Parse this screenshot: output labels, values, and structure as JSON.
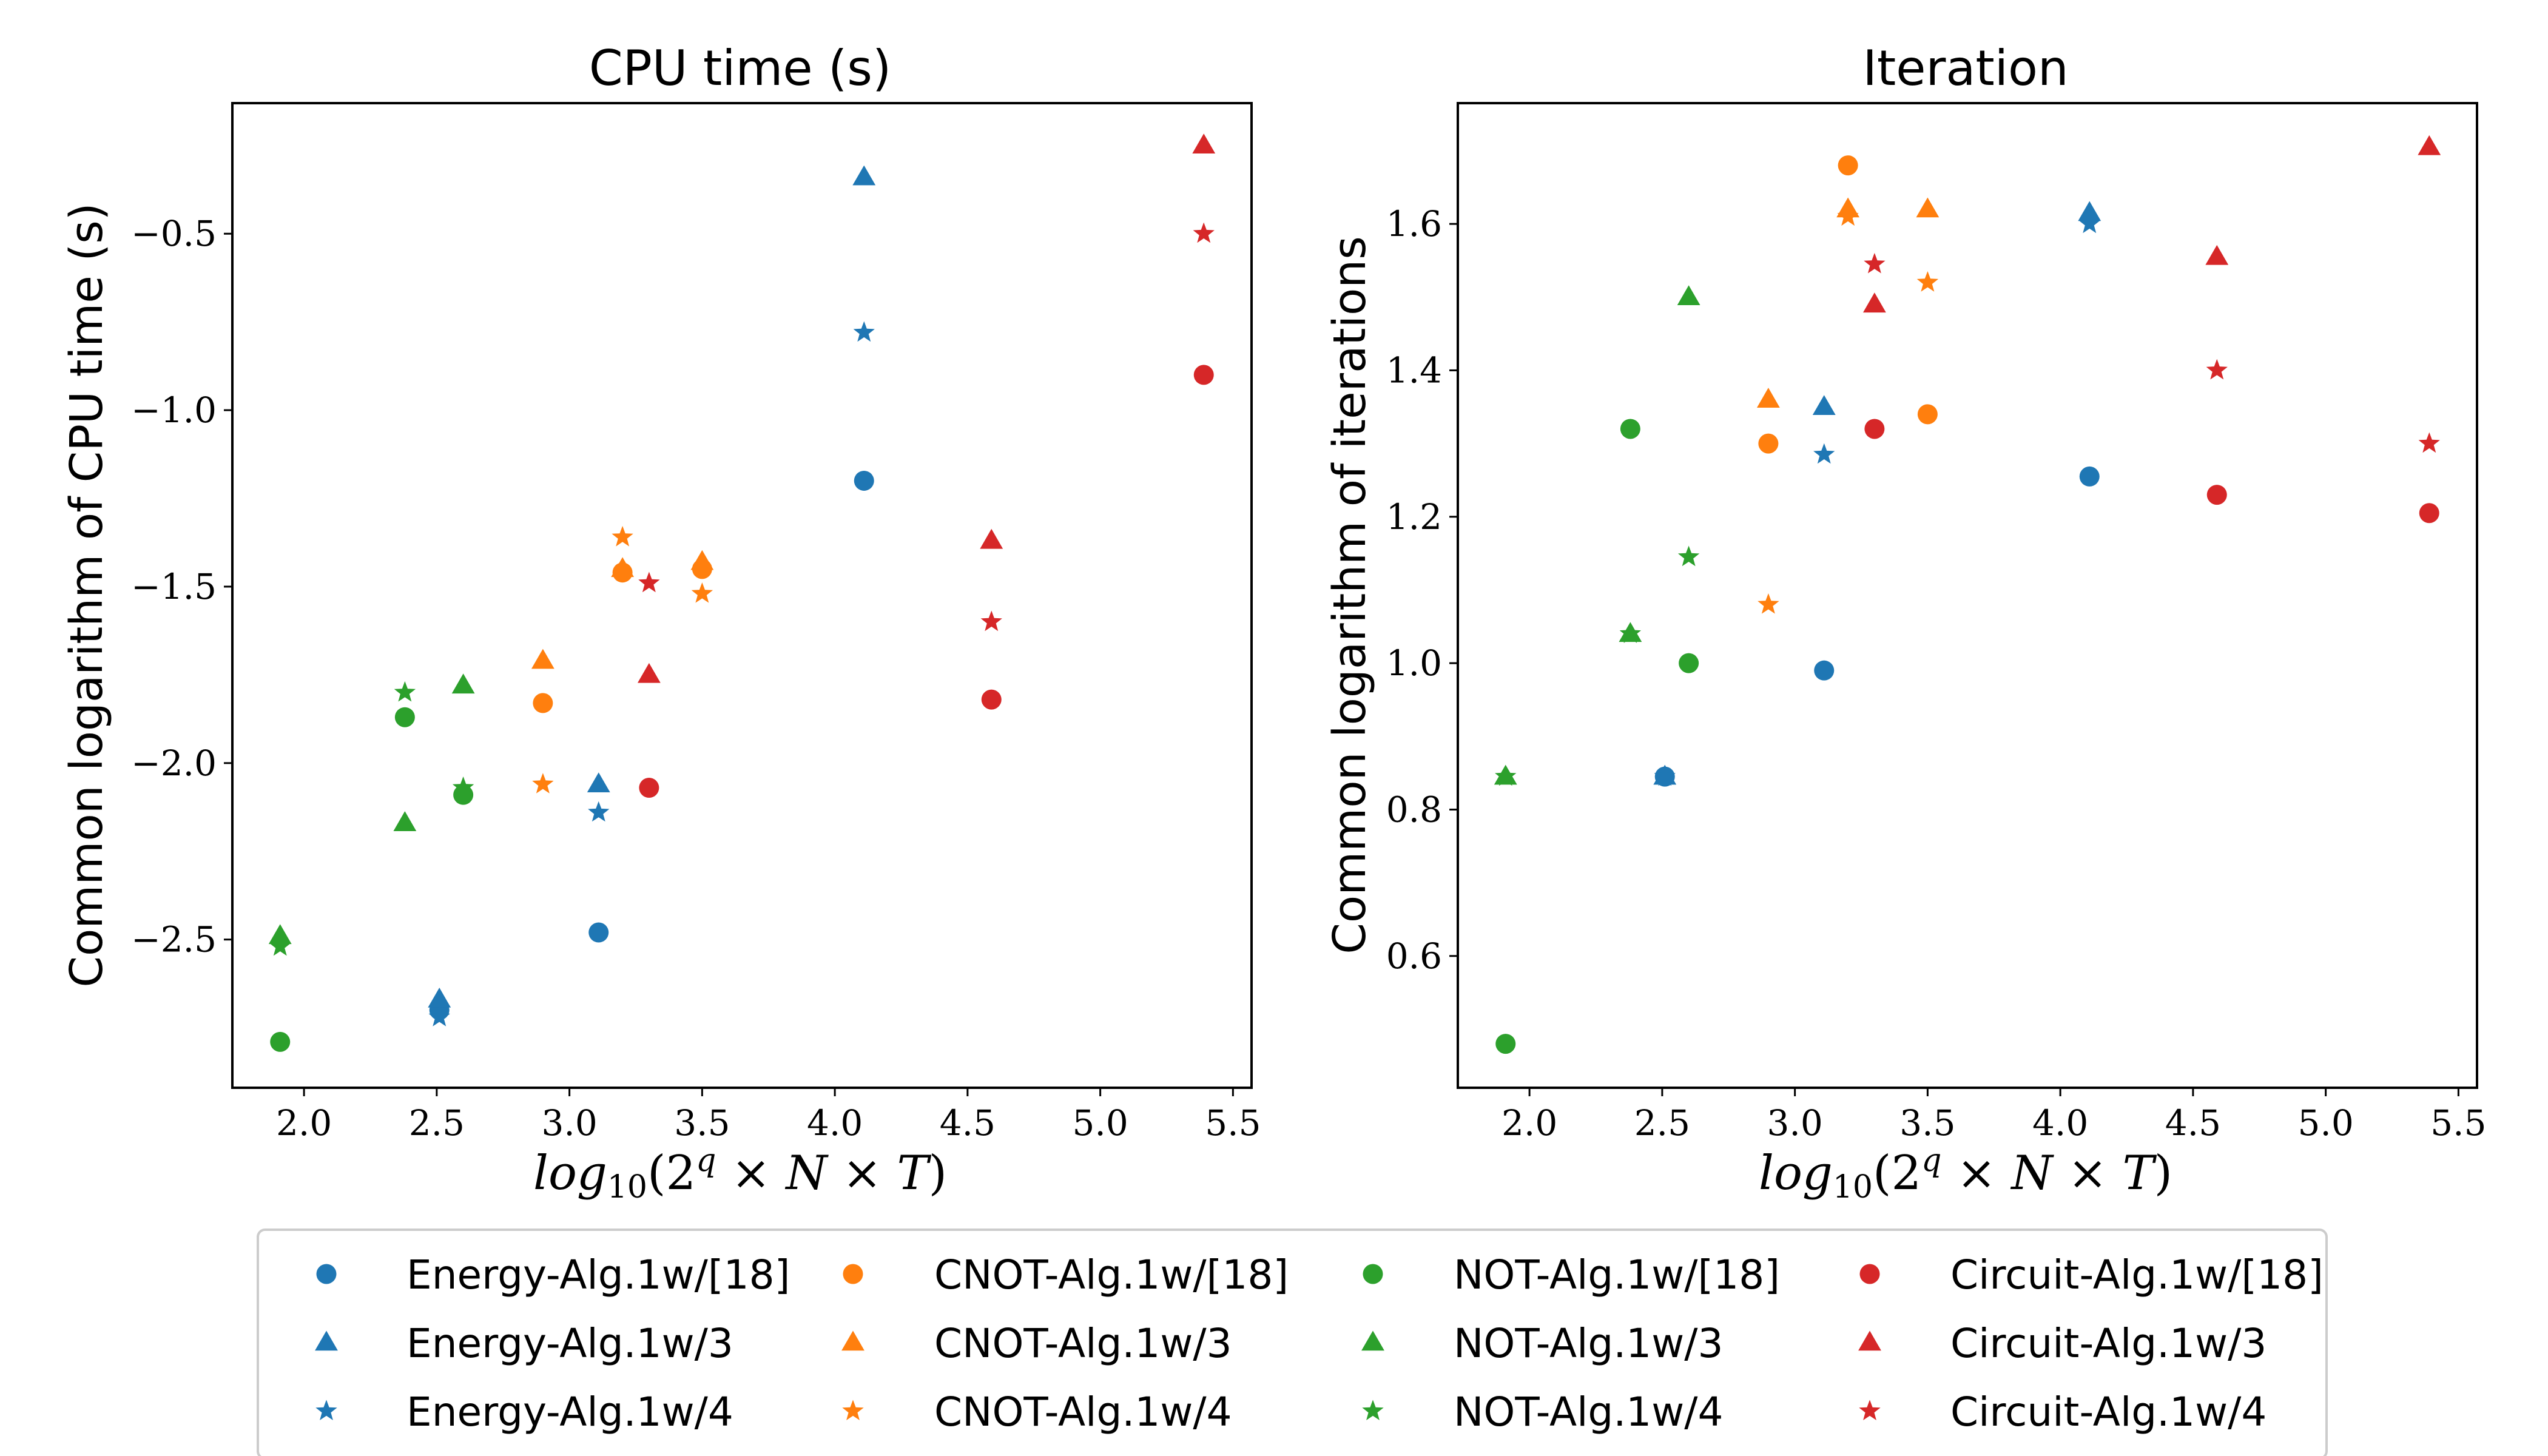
{
  "legend": [
    {
      "label": "Energy-Alg.1w/[18]",
      "color": "#1f77b4",
      "marker": "circle"
    },
    {
      "label": "CNOT-Alg.1w/[18]",
      "color": "#ff7f0e",
      "marker": "circle"
    },
    {
      "label": "NOT-Alg.1w/[18]",
      "color": "#2ca02c",
      "marker": "circle"
    },
    {
      "label": "Circuit-Alg.1w/[18]",
      "color": "#d62728",
      "marker": "circle"
    },
    {
      "label": "Energy-Alg.1w/3",
      "color": "#1f77b4",
      "marker": "triangle"
    },
    {
      "label": "CNOT-Alg.1w/3",
      "color": "#ff7f0e",
      "marker": "triangle"
    },
    {
      "label": "NOT-Alg.1w/3",
      "color": "#2ca02c",
      "marker": "triangle"
    },
    {
      "label": "Circuit-Alg.1w/3",
      "color": "#d62728",
      "marker": "triangle"
    },
    {
      "label": "Energy-Alg.1w/4",
      "color": "#1f77b4",
      "marker": "star"
    },
    {
      "label": "CNOT-Alg.1w/4",
      "color": "#ff7f0e",
      "marker": "star"
    },
    {
      "label": "NOT-Alg.1w/4",
      "color": "#2ca02c",
      "marker": "star"
    },
    {
      "label": "Circuit-Alg.1w/4",
      "color": "#d62728",
      "marker": "star"
    }
  ],
  "chart_data": [
    {
      "type": "scatter",
      "title": "CPU time (s)",
      "xlabel": "log10(2^q × N × T)",
      "ylabel": "Common logarithm of CPU time (s)",
      "xlim": [
        1.73,
        5.57
      ],
      "ylim": [
        -2.92,
        -0.13
      ],
      "xticks": [
        2.0,
        2.5,
        3.0,
        3.5,
        4.0,
        4.5,
        5.0,
        5.5
      ],
      "xtick_labels": [
        "2.0",
        "2.5",
        "3.0",
        "3.5",
        "4.0",
        "4.5",
        "5.0",
        "5.5"
      ],
      "yticks": [
        -2.5,
        -2.0,
        -1.5,
        -1.0,
        -0.5
      ],
      "ytick_labels": [
        "−2.5",
        "−2.0",
        "−1.5",
        "−1.0",
        "−0.5"
      ],
      "series": [
        {
          "name": "Energy-Alg.1w/[18]",
          "color": "#1f77b4",
          "marker": "circle",
          "x": [
            2.51,
            3.11,
            4.11
          ],
          "y": [
            -2.7,
            -2.48,
            -1.2
          ]
        },
        {
          "name": "Energy-Alg.1w/3",
          "color": "#1f77b4",
          "marker": "triangle",
          "x": [
            2.51,
            3.11,
            4.11
          ],
          "y": [
            -2.67,
            -2.06,
            -0.34
          ]
        },
        {
          "name": "Energy-Alg.1w/4",
          "color": "#1f77b4",
          "marker": "star",
          "x": [
            2.51,
            3.11,
            4.11
          ],
          "y": [
            -2.72,
            -2.14,
            -0.78
          ]
        },
        {
          "name": "CNOT-Alg.1w/[18]",
          "color": "#ff7f0e",
          "marker": "circle",
          "x": [
            2.9,
            3.2,
            3.5
          ],
          "y": [
            -1.83,
            -1.46,
            -1.45
          ]
        },
        {
          "name": "CNOT-Alg.1w/3",
          "color": "#ff7f0e",
          "marker": "triangle",
          "x": [
            2.9,
            3.2,
            3.5
          ],
          "y": [
            -1.71,
            -1.45,
            -1.43
          ]
        },
        {
          "name": "CNOT-Alg.1w/4",
          "color": "#ff7f0e",
          "marker": "star",
          "x": [
            2.9,
            3.2,
            3.5
          ],
          "y": [
            -2.06,
            -1.36,
            -1.52
          ]
        },
        {
          "name": "NOT-Alg.1w/[18]",
          "color": "#2ca02c",
          "marker": "circle",
          "x": [
            1.91,
            2.38,
            2.6
          ],
          "y": [
            -2.79,
            -1.87,
            -2.09
          ]
        },
        {
          "name": "NOT-Alg.1w/3",
          "color": "#2ca02c",
          "marker": "triangle",
          "x": [
            1.91,
            2.38,
            2.6
          ],
          "y": [
            -2.49,
            -2.17,
            -1.78
          ]
        },
        {
          "name": "NOT-Alg.1w/4",
          "color": "#2ca02c",
          "marker": "star",
          "x": [
            1.91,
            2.38,
            2.6
          ],
          "y": [
            -2.52,
            -1.8,
            -2.07
          ]
        },
        {
          "name": "Circuit-Alg.1w/[18]",
          "color": "#d62728",
          "marker": "circle",
          "x": [
            3.3,
            4.59,
            5.39
          ],
          "y": [
            -2.07,
            -1.82,
            -0.9
          ]
        },
        {
          "name": "Circuit-Alg.1w/3",
          "color": "#d62728",
          "marker": "triangle",
          "x": [
            3.3,
            4.59,
            5.39
          ],
          "y": [
            -1.75,
            -1.37,
            -0.25
          ]
        },
        {
          "name": "Circuit-Alg.1w/4",
          "color": "#d62728",
          "marker": "star",
          "x": [
            3.3,
            4.59,
            5.39
          ],
          "y": [
            -1.49,
            -1.6,
            -0.5
          ]
        }
      ]
    },
    {
      "type": "scatter",
      "title": "Iteration",
      "xlabel": "log10(2^q × N × T)",
      "ylabel": "Common logarithm of iterations",
      "xlim": [
        1.73,
        5.57
      ],
      "ylim": [
        0.42,
        1.765
      ],
      "xticks": [
        2.0,
        2.5,
        3.0,
        3.5,
        4.0,
        4.5,
        5.0,
        5.5
      ],
      "xtick_labels": [
        "2.0",
        "2.5",
        "3.0",
        "3.5",
        "4.0",
        "4.5",
        "5.0",
        "5.5"
      ],
      "yticks": [
        0.6,
        0.8,
        1.0,
        1.2,
        1.4,
        1.6
      ],
      "ytick_labels": [
        "0.6",
        "0.8",
        "1.0",
        "1.2",
        "1.4",
        "1.6"
      ],
      "series": [
        {
          "name": "Energy-Alg.1w/[18]",
          "color": "#1f77b4",
          "marker": "circle",
          "x": [
            2.51,
            3.11,
            4.11
          ],
          "y": [
            0.845,
            0.99,
            1.255
          ]
        },
        {
          "name": "Energy-Alg.1w/3",
          "color": "#1f77b4",
          "marker": "triangle",
          "x": [
            2.51,
            3.11,
            4.11
          ],
          "y": [
            0.845,
            1.35,
            1.615
          ]
        },
        {
          "name": "Energy-Alg.1w/4",
          "color": "#1f77b4",
          "marker": "star",
          "x": [
            2.51,
            3.11,
            4.11
          ],
          "y": [
            0.845,
            1.285,
            1.6
          ]
        },
        {
          "name": "CNOT-Alg.1w/[18]",
          "color": "#ff7f0e",
          "marker": "circle",
          "x": [
            2.9,
            3.2,
            3.5
          ],
          "y": [
            1.3,
            1.68,
            1.34
          ]
        },
        {
          "name": "CNOT-Alg.1w/3",
          "color": "#ff7f0e",
          "marker": "triangle",
          "x": [
            2.9,
            3.2,
            3.5
          ],
          "y": [
            1.36,
            1.62,
            1.62
          ]
        },
        {
          "name": "CNOT-Alg.1w/4",
          "color": "#ff7f0e",
          "marker": "star",
          "x": [
            2.9,
            3.2,
            3.5
          ],
          "y": [
            1.08,
            1.61,
            1.52
          ]
        },
        {
          "name": "NOT-Alg.1w/[18]",
          "color": "#2ca02c",
          "marker": "circle",
          "x": [
            1.91,
            2.38,
            2.6
          ],
          "y": [
            0.48,
            1.32,
            1.0
          ]
        },
        {
          "name": "NOT-Alg.1w/3",
          "color": "#2ca02c",
          "marker": "triangle",
          "x": [
            1.91,
            2.38,
            2.6
          ],
          "y": [
            0.845,
            1.04,
            1.5
          ]
        },
        {
          "name": "NOT-Alg.1w/4",
          "color": "#2ca02c",
          "marker": "star",
          "x": [
            1.91,
            2.38,
            2.6
          ],
          "y": [
            0.845,
            1.04,
            1.145
          ]
        },
        {
          "name": "Circuit-Alg.1w/[18]",
          "color": "#d62728",
          "marker": "circle",
          "x": [
            3.3,
            4.59,
            5.39
          ],
          "y": [
            1.32,
            1.23,
            1.205
          ]
        },
        {
          "name": "Circuit-Alg.1w/3",
          "color": "#d62728",
          "marker": "triangle",
          "x": [
            3.3,
            4.59,
            5.39
          ],
          "y": [
            1.49,
            1.555,
            1.705
          ]
        },
        {
          "name": "Circuit-Alg.1w/4",
          "color": "#d62728",
          "marker": "star",
          "x": [
            3.3,
            4.59,
            5.39
          ],
          "y": [
            1.545,
            1.4,
            1.3
          ]
        }
      ]
    }
  ]
}
